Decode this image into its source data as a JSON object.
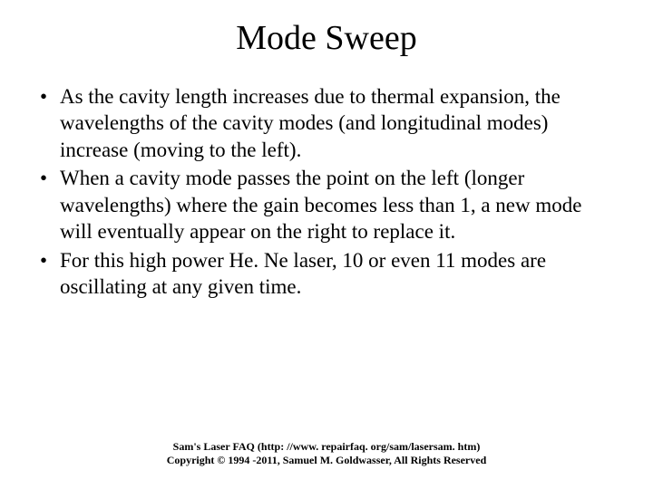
{
  "title": "Mode Sweep",
  "bullets": [
    "As the cavity length increases due to thermal expansion, the wavelengths of the cavity modes (and longitudinal modes) increase (moving to the left).",
    "When a cavity mode passes the point on the left (longer wavelengths) where the gain becomes less than 1, a new mode will eventually appear on the right to replace it.",
    "For this high power He. Ne laser, 10 or even 11 modes are oscillating at any given time."
  ],
  "footer": {
    "line1": "Sam's Laser FAQ (http: //www. repairfaq. org/sam/lasersam. htm)",
    "line2": "Copyright © 1994 -2011, Samuel M. Goldwasser, All Rights Reserved"
  },
  "colors": {
    "background": "#ffffff",
    "text": "#000000"
  },
  "typography": {
    "title_fontsize": 38,
    "bullet_fontsize": 23,
    "footer_fontsize": 12,
    "font_family": "Times New Roman"
  }
}
